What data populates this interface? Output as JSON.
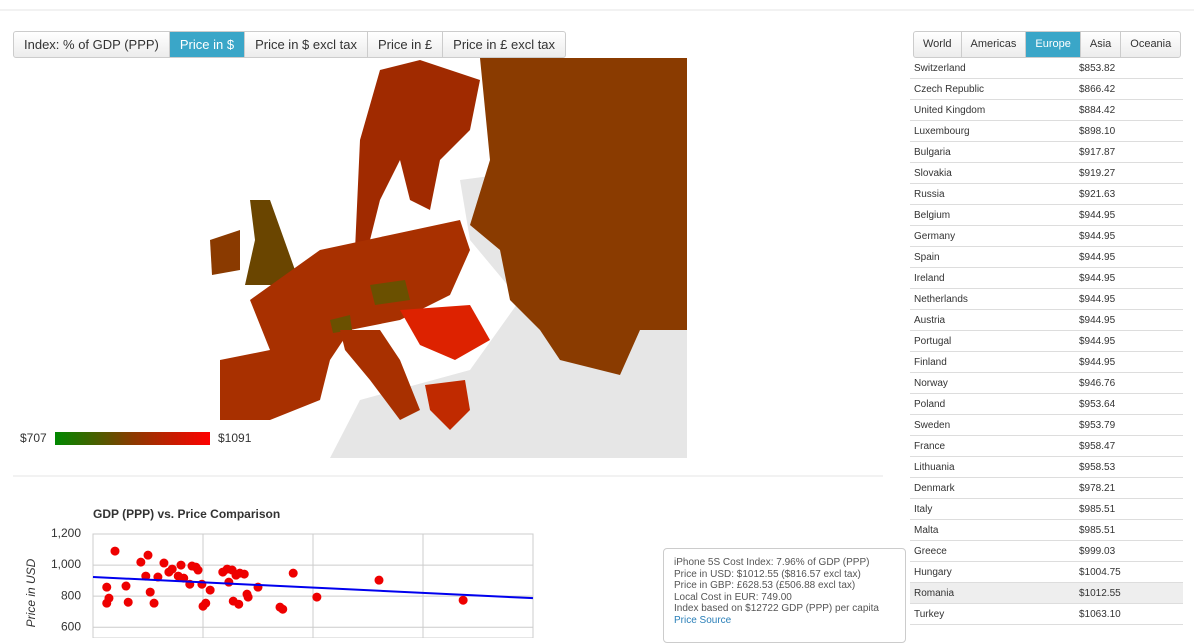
{
  "index_tabs": {
    "items": [
      "Index: % of GDP (PPP)",
      "Price in $",
      "Price in $ excl tax",
      "Price in £",
      "Price in £ excl tax"
    ],
    "active": 1
  },
  "region_tabs": {
    "items": [
      "World",
      "Americas",
      "Europe",
      "Asia",
      "Oceania"
    ],
    "active": 2
  },
  "legend": {
    "min_label": "$707",
    "max_label": "$1091"
  },
  "table": {
    "highlight": 25,
    "rows": [
      [
        "Switzerland",
        "$853.82"
      ],
      [
        "Czech Republic",
        "$866.42"
      ],
      [
        "United Kingdom",
        "$884.42"
      ],
      [
        "Luxembourg",
        "$898.10"
      ],
      [
        "Bulgaria",
        "$917.87"
      ],
      [
        "Slovakia",
        "$919.27"
      ],
      [
        "Russia",
        "$921.63"
      ],
      [
        "Belgium",
        "$944.95"
      ],
      [
        "Germany",
        "$944.95"
      ],
      [
        "Spain",
        "$944.95"
      ],
      [
        "Ireland",
        "$944.95"
      ],
      [
        "Netherlands",
        "$944.95"
      ],
      [
        "Austria",
        "$944.95"
      ],
      [
        "Portugal",
        "$944.95"
      ],
      [
        "Finland",
        "$944.95"
      ],
      [
        "Norway",
        "$946.76"
      ],
      [
        "Poland",
        "$953.64"
      ],
      [
        "Sweden",
        "$953.79"
      ],
      [
        "France",
        "$958.47"
      ],
      [
        "Lithuania",
        "$958.53"
      ],
      [
        "Denmark",
        "$978.21"
      ],
      [
        "Italy",
        "$985.51"
      ],
      [
        "Malta",
        "$985.51"
      ],
      [
        "Greece",
        "$999.03"
      ],
      [
        "Hungary",
        "$1004.75"
      ],
      [
        "Romania",
        "$1012.55"
      ],
      [
        "Turkey",
        "$1063.10"
      ]
    ]
  },
  "tooltip": {
    "lines": [
      "iPhone 5S Cost Index: 7.96% of GDP (PPP)",
      "Price in USD: $1012.55 ($816.57 excl tax)",
      "Price in GBP: £628.53 (£506.88 excl tax)",
      "Local Cost in EUR: 749.00",
      "Index based on $12722 GDP (PPP) per capita"
    ],
    "link": "Price Source"
  },
  "chart_data": {
    "type": "scatter",
    "title": "GDP (PPP) vs. Price Comparison",
    "y_label": "Price in USD",
    "ylim": [
      550,
      1200
    ],
    "yticks": [
      600,
      800,
      {
        "value": 1000,
        "label": "1,000"
      },
      {
        "value": 1200,
        "label": "1,200"
      }
    ],
    "xlim": [
      0,
      80000
    ],
    "color": "#ee0000",
    "x": [
      4000,
      2500,
      2900,
      2500,
      6000,
      6400,
      8700,
      9600,
      10000,
      10400,
      11100,
      11800,
      12900,
      13800,
      14400,
      15500,
      16000,
      16500,
      18000,
      17600,
      18700,
      19800,
      20000,
      20500,
      19100,
      21300,
      23600,
      24400,
      24700,
      25300,
      26000,
      25500,
      26700,
      27500,
      26500,
      28000,
      28200,
      30000,
      34000,
      34500,
      36400,
      40700,
      52000,
      67300
    ],
    "values": [
      1090,
      858,
      787,
      755,
      865,
      761,
      1019,
      929,
      1064,
      826,
      755,
      923,
      1013,
      955,
      974,
      929,
      1000,
      916,
      994,
      877,
      987,
      877,
      735,
      755,
      968,
      839,
      955,
      974,
      890,
      968,
      935,
      768,
      948,
      942,
      748,
      813,
      794,
      858,
      729,
      716,
      948,
      794,
      903,
      774
    ],
    "trend": {
      "color": "#0000ee",
      "values": [
        923,
        787
      ]
    }
  }
}
